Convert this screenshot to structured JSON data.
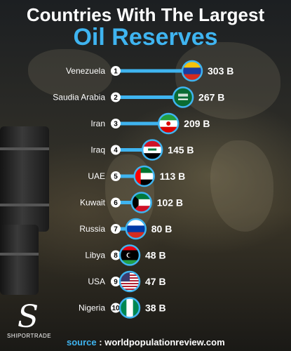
{
  "header": {
    "line1": "Countries With The Largest",
    "line2": "Oil Reserves"
  },
  "chart_data": {
    "type": "bar",
    "title": "Countries With The Largest Oil Reserves",
    "unit": "B",
    "ranks": [
      1,
      2,
      3,
      4,
      5,
      6,
      7,
      8,
      9,
      10
    ],
    "categories": [
      "Venezuela",
      "Saudia Arabia",
      "Iran",
      "Iraq",
      "UAE",
      "Kuwait",
      "Russia",
      "Libya",
      "USA",
      "Nigeria"
    ],
    "values": [
      303,
      267,
      209,
      145,
      113,
      102,
      80,
      48,
      47,
      38
    ],
    "value_labels": [
      "303 B",
      "267 B",
      "209 B",
      "145 B",
      "113 B",
      "102 B",
      "80 B",
      "48 B",
      "47 B",
      "38 B"
    ],
    "flag_icons": [
      "venezuela-flag-icon",
      "saudi-arabia-flag-icon",
      "iran-flag-icon",
      "iraq-flag-icon",
      "uae-flag-icon",
      "kuwait-flag-icon",
      "russia-flag-icon",
      "libya-flag-icon",
      "usa-flag-icon",
      "nigeria-flag-icon"
    ],
    "bar_color": "#3fb4f0"
  },
  "footer": {
    "brand": "SHIPORTRADE",
    "source_label": "source",
    "source_sep": " : ",
    "source_url": "worldpopulationreview.com"
  }
}
